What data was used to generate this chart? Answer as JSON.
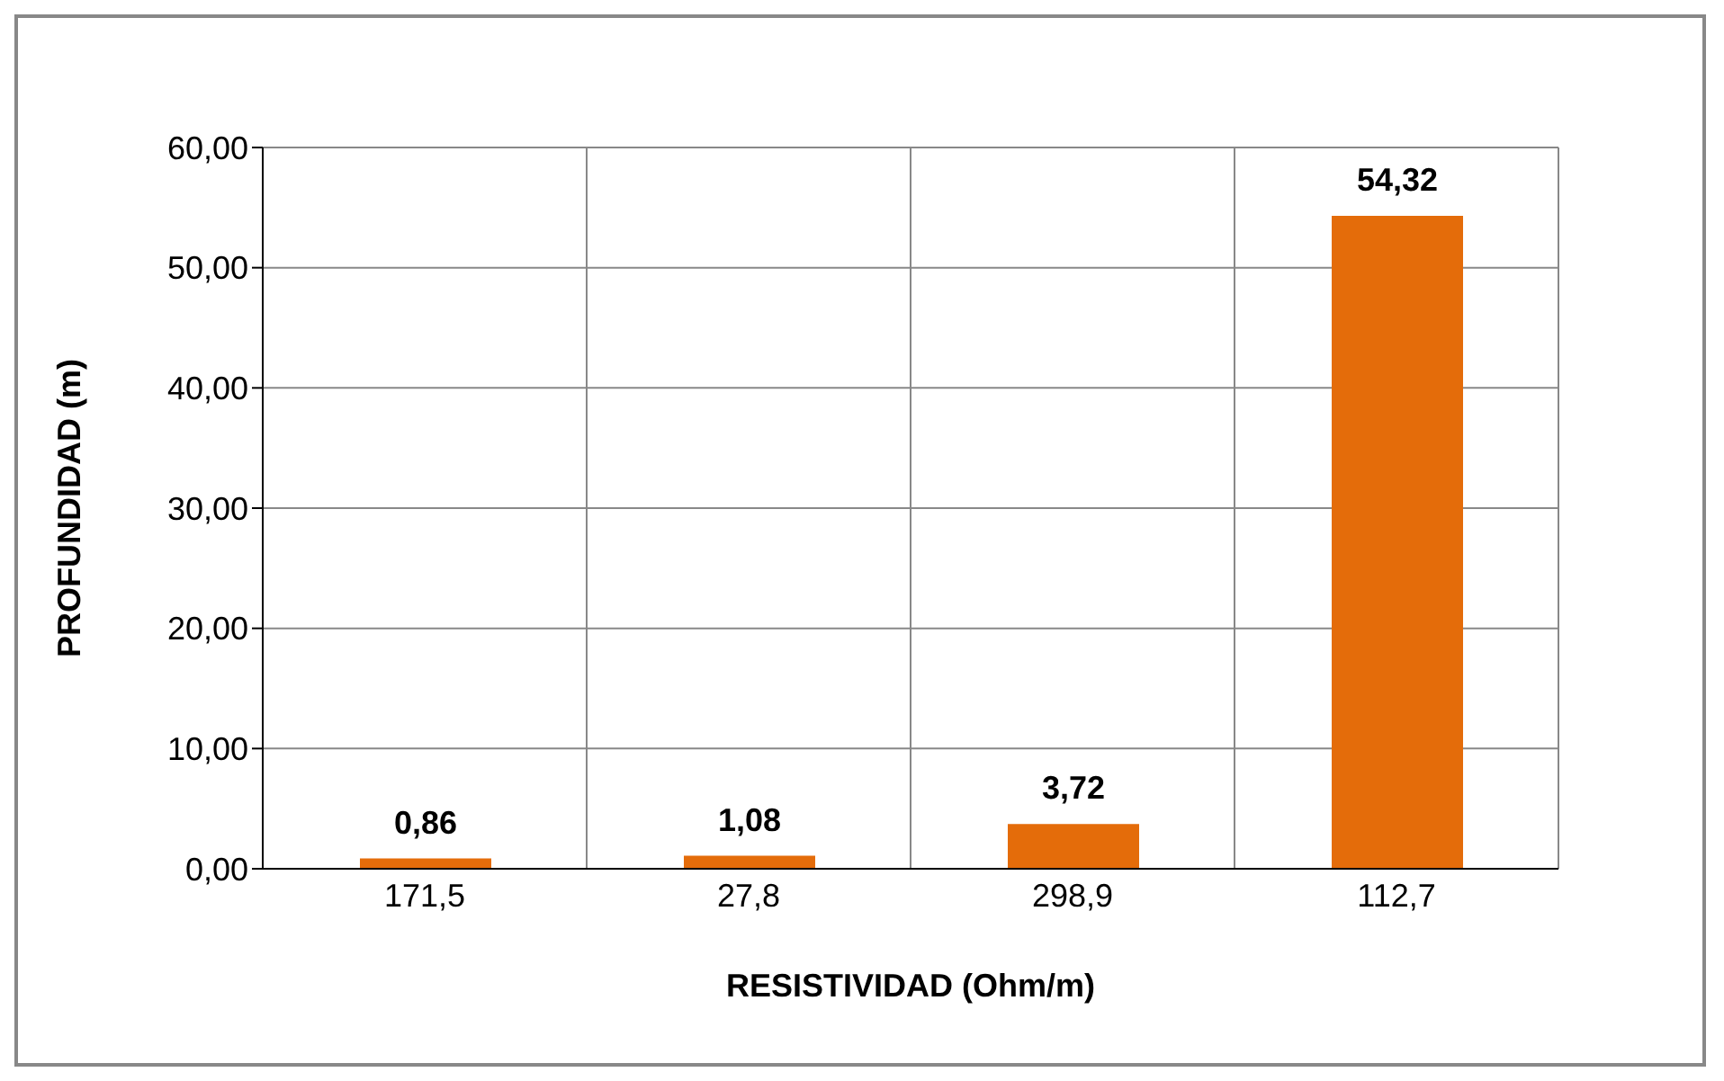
{
  "chart_data": {
    "type": "bar",
    "xlabel": "RESISTIVIDAD (Ohm/m)",
    "ylabel": "PROFUNDIDAD (m)",
    "categories": [
      "171,5",
      "27,8",
      "298,9",
      "112,7"
    ],
    "values": [
      0.86,
      1.08,
      3.72,
      54.32
    ],
    "value_labels": [
      "0,86",
      "1,08",
      "3,72",
      "54,32"
    ],
    "color": "#e46c0a",
    "ylim": [
      0,
      60
    ],
    "yticks": [
      {
        "value": 0,
        "label": "0,00"
      },
      {
        "value": 10,
        "label": "10,00"
      },
      {
        "value": 20,
        "label": "20,00"
      },
      {
        "value": 30,
        "label": "30,00"
      },
      {
        "value": 40,
        "label": "40,00"
      },
      {
        "value": 50,
        "label": "50,00"
      },
      {
        "value": 60,
        "label": "60,00"
      }
    ],
    "grid": true,
    "legend": false
  }
}
